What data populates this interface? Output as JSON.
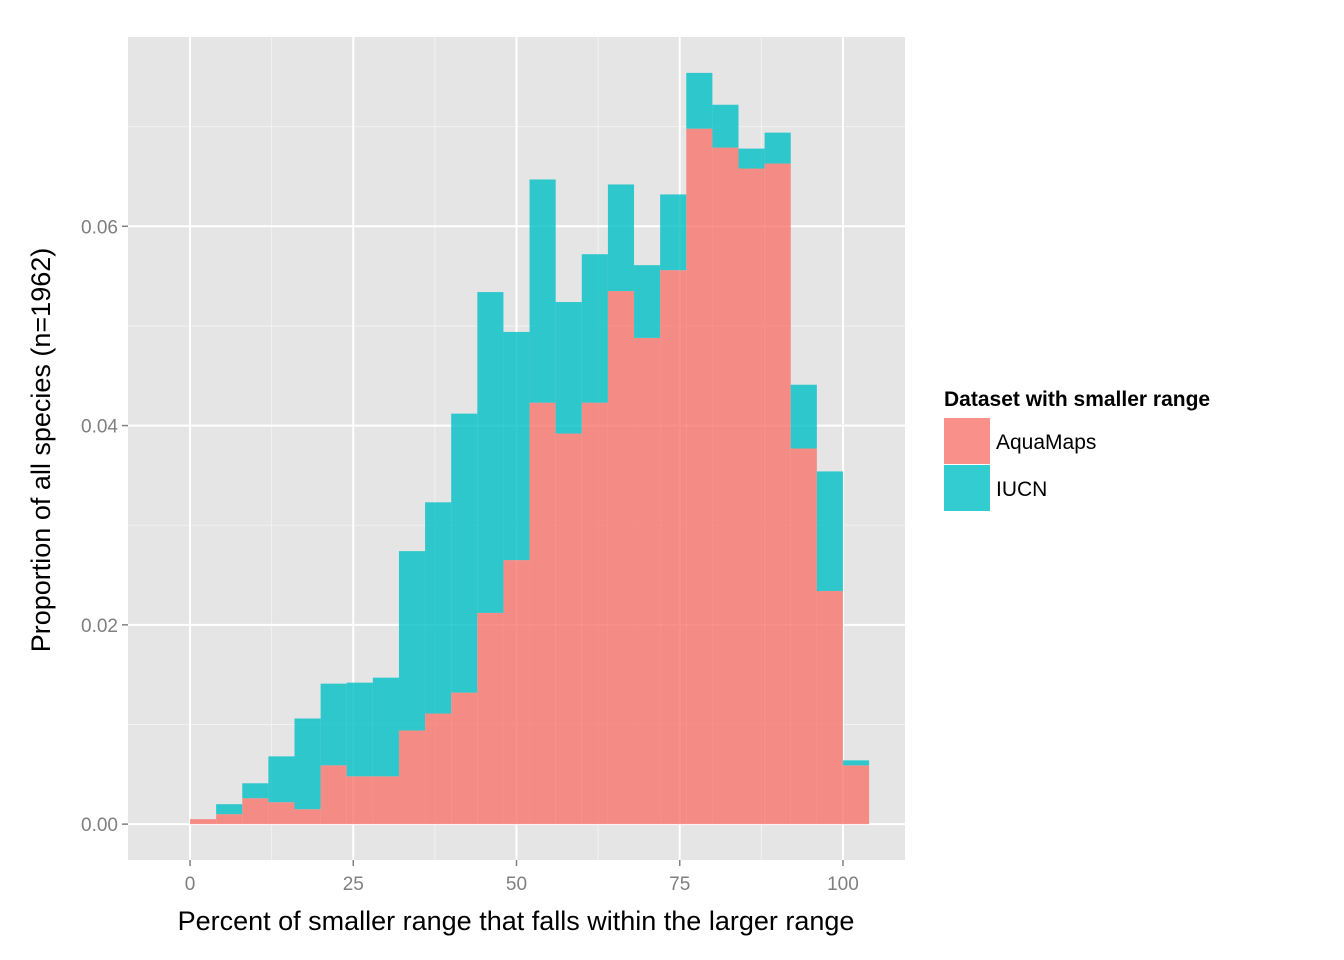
{
  "chart_data": {
    "type": "bar",
    "stacked": true,
    "xlabel": "Percent of smaller range that falls within the larger range",
    "ylabel": "Proportion of all species (n=1962)",
    "xlim": [
      -9.5,
      109.5
    ],
    "ylim": [
      -0.0036,
      0.079
    ],
    "x_breaks": [
      0,
      25,
      50,
      75,
      100
    ],
    "x_tick_labels": [
      "0",
      "25",
      "50",
      "75",
      "100"
    ],
    "x_minor_breaks": [
      12.5,
      37.5,
      62.5,
      87.5
    ],
    "y_breaks": [
      0,
      0.02,
      0.04,
      0.06
    ],
    "y_tick_labels": [
      "0.00",
      "0.02",
      "0.04",
      "0.06"
    ],
    "y_minor_breaks": [
      0.01,
      0.03,
      0.05,
      0.07
    ],
    "grid": true,
    "bin_width": 4,
    "bin_starts": [
      0,
      4,
      8,
      12,
      16,
      20,
      24,
      28,
      32,
      36,
      40,
      44,
      48,
      52,
      56,
      60,
      64,
      68,
      72,
      76,
      80,
      84,
      88,
      92,
      96,
      100
    ],
    "series": [
      {
        "name": "AquaMaps",
        "color": "#F8766D",
        "values": [
          0.0005,
          0.001,
          0.0026,
          0.0022,
          0.0015,
          0.0059,
          0.0048,
          0.0048,
          0.0094,
          0.0111,
          0.0132,
          0.0212,
          0.0265,
          0.0423,
          0.0392,
          0.0423,
          0.0535,
          0.0488,
          0.0556,
          0.0698,
          0.0679,
          0.0658,
          0.0663,
          0.0377,
          0.0234,
          0.0059
        ]
      },
      {
        "name": "IUCN",
        "color": "#00BFC4",
        "values": [
          0.0,
          0.001,
          0.0015,
          0.0046,
          0.0091,
          0.0082,
          0.0094,
          0.0099,
          0.018,
          0.0212,
          0.028,
          0.0322,
          0.0229,
          0.0224,
          0.0132,
          0.0149,
          0.0107,
          0.0073,
          0.0076,
          0.0056,
          0.0043,
          0.002,
          0.0031,
          0.0064,
          0.012,
          0.0005
        ]
      }
    ],
    "legend": {
      "title": "Dataset with smaller range",
      "position": "right",
      "entries": [
        "AquaMaps",
        "IUCN"
      ]
    }
  }
}
